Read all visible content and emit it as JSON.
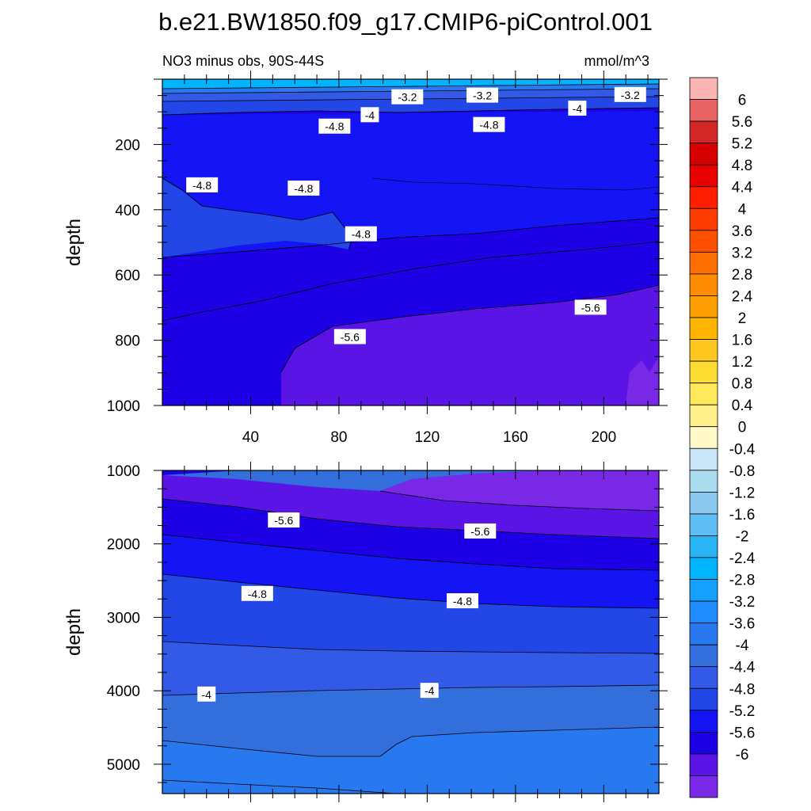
{
  "title": "b.e21.BW1850.f09_g17.CMIP6-piControl.001",
  "chart_data": [
    {
      "type": "contour",
      "panel": "upper",
      "left_label": "NO3 minus obs, 90S-44S",
      "units_label": "mmol/m^3",
      "ylabel": "depth",
      "xlabel": "",
      "xlim": [
        0,
        225
      ],
      "ylim": [
        1000,
        0
      ],
      "xticks": [
        "40",
        "80",
        "120",
        "160",
        "200"
      ],
      "yticks": [
        "200",
        "400",
        "600",
        "800",
        "1000"
      ],
      "contour_labels": [
        {
          "text": "-3.2",
          "x": 111,
          "y": 55
        },
        {
          "text": "-3.2",
          "x": 145,
          "y": 50
        },
        {
          "text": "-3.2",
          "x": 212,
          "y": 48
        },
        {
          "text": "-4",
          "x": 94,
          "y": 110
        },
        {
          "text": "-4",
          "x": 188,
          "y": 90
        },
        {
          "text": "-4.8",
          "x": 78,
          "y": 145
        },
        {
          "text": "-4.8",
          "x": 148,
          "y": 140
        },
        {
          "text": "-4.8",
          "x": 18,
          "y": 325
        },
        {
          "text": "-4.8",
          "x": 64,
          "y": 335
        },
        {
          "text": "-4.8",
          "x": 90,
          "y": 475
        },
        {
          "text": "-5.6",
          "x": 85,
          "y": 790
        },
        {
          "text": "-5.6",
          "x": 194,
          "y": 700
        }
      ]
    },
    {
      "type": "contour",
      "panel": "lower",
      "ylabel": "depth",
      "xlabel": "",
      "xlim": [
        0,
        225
      ],
      "ylim": [
        5400,
        1000
      ],
      "yticks": [
        "1000",
        "2000",
        "3000",
        "4000",
        "5000"
      ],
      "contour_labels": [
        {
          "text": "-5.6",
          "x": 55,
          "y": 1680
        },
        {
          "text": "-5.6",
          "x": 144,
          "y": 1830
        },
        {
          "text": "-4.8",
          "x": 43,
          "y": 2680
        },
        {
          "text": "-4.8",
          "x": 136,
          "y": 2780
        },
        {
          "text": "-4",
          "x": 20,
          "y": 4050
        },
        {
          "text": "-4",
          "x": 121,
          "y": 4000
        }
      ]
    }
  ],
  "colorbar": {
    "labels": [
      "6",
      "5.6",
      "5.2",
      "4.8",
      "4.4",
      "4",
      "3.6",
      "3.2",
      "2.8",
      "2.4",
      "2",
      "1.6",
      "1.2",
      "0.8",
      "0.4",
      "0",
      "-0.4",
      "-0.8",
      "-1.2",
      "-1.6",
      "-2",
      "-2.4",
      "-2.8",
      "-3.2",
      "-3.6",
      "-4",
      "-4.4",
      "-4.8",
      "-5.2",
      "-5.6",
      "-6"
    ],
    "colors": [
      "#fdb4b4",
      "#e86464",
      "#d22828",
      "#d70000",
      "#eb0000",
      "#ff1e00",
      "#ff3c00",
      "#ff5000",
      "#ff6e00",
      "#ff8c00",
      "#ffa000",
      "#ffb400",
      "#ffc81e",
      "#ffdc32",
      "#ffe85a",
      "#fff08c",
      "#fffac8",
      "#c8e6f5",
      "#aadcf0",
      "#8cc8f0",
      "#5fbef5",
      "#28b4f5",
      "#00b4ff",
      "#14a0ff",
      "#1e8cff",
      "#2878f0",
      "#326edc",
      "#325ae6",
      "#2346e6",
      "#1414f5",
      "#1e00e6",
      "#5a14e6",
      "#7828e6"
    ]
  }
}
